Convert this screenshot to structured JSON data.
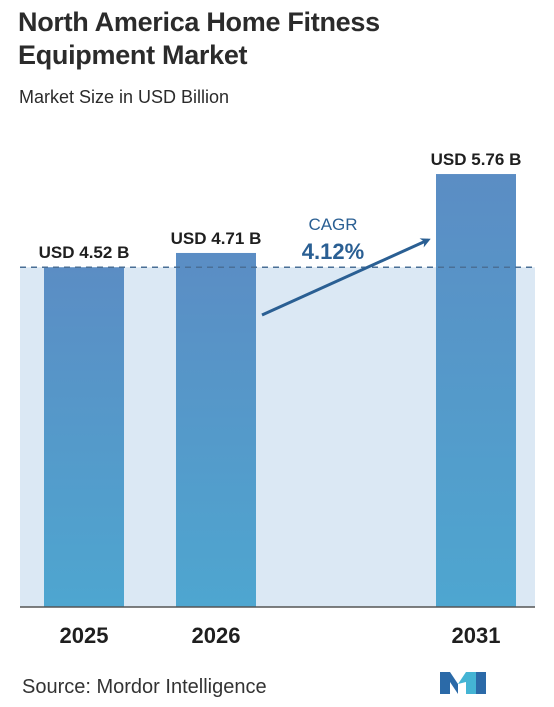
{
  "header": {
    "title_line1": "North America Home Fitness",
    "title_line2": "Equipment Market",
    "subtitle": "Market Size in USD Billion"
  },
  "chart_data": {
    "type": "bar",
    "categories": [
      "2025",
      "2026",
      "2031"
    ],
    "values": [
      4.52,
      4.71,
      5.76
    ],
    "data_labels": [
      "USD 4.52 B",
      "USD 4.71 B",
      "USD 5.76 B"
    ],
    "ylim": [
      0,
      6.0
    ],
    "baseline_reference": 4.52,
    "annotation": {
      "label": "CAGR",
      "value": "4.12%"
    },
    "colors": {
      "bar_top": "#5b8fc4",
      "bar_bottom": "#4fa3cf",
      "band": "#dbe8f4",
      "arrow": "#2a5f93"
    }
  },
  "footer": {
    "source": "Source:  Mordor Intelligence",
    "logo": "mordor-intelligence-logo"
  }
}
